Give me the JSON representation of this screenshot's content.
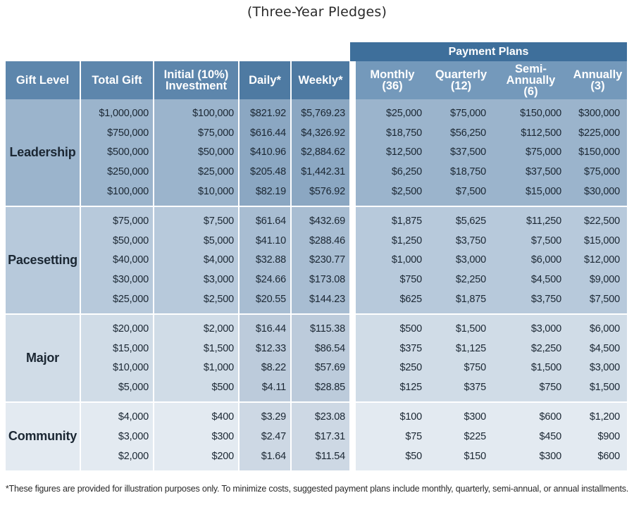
{
  "subtitle": "(Three-Year Pledges)",
  "payment_plans_label": "Payment Plans",
  "headers": {
    "gift_level": "Gift Level",
    "total_gift": "Total Gift",
    "initial_1": "Initial (10%)",
    "initial_2": "Investment",
    "daily": "Daily*",
    "weekly": "Weekly*",
    "monthly_1": "Monthly",
    "monthly_2": "(36)",
    "quarterly_1": "Quarterly",
    "quarterly_2": "(12)",
    "semi_1": "Semi-Annually",
    "semi_2": "(6)",
    "annual_1": "Annually",
    "annual_2": "(3)"
  },
  "groups": [
    {
      "level": "Leadership",
      "rows": [
        {
          "total": "$1,000,000",
          "initial": "$100,000",
          "daily": "$821.92",
          "weekly": "$5,769.23",
          "monthly": "$25,000",
          "quarterly": "$75,000",
          "semi": "$150,000",
          "annual": "$300,000"
        },
        {
          "total": "$750,000",
          "initial": "$75,000",
          "daily": "$616.44",
          "weekly": "$4,326.92",
          "monthly": "$18,750",
          "quarterly": "$56,250",
          "semi": "$112,500",
          "annual": "$225,000"
        },
        {
          "total": "$500,000",
          "initial": "$50,000",
          "daily": "$410.96",
          "weekly": "$2,884.62",
          "monthly": "$12,500",
          "quarterly": "$37,500",
          "semi": "$75,000",
          "annual": "$150,000"
        },
        {
          "total": "$250,000",
          "initial": "$25,000",
          "daily": "$205.48",
          "weekly": "$1,442.31",
          "monthly": "$6,250",
          "quarterly": "$18,750",
          "semi": "$37,500",
          "annual": "$75,000"
        },
        {
          "total": "$100,000",
          "initial": "$10,000",
          "daily": "$82.19",
          "weekly": "$576.92",
          "monthly": "$2,500",
          "quarterly": "$7,500",
          "semi": "$15,000",
          "annual": "$30,000"
        }
      ]
    },
    {
      "level": "Pacesetting",
      "rows": [
        {
          "total": "$75,000",
          "initial": "$7,500",
          "daily": "$61.64",
          "weekly": "$432.69",
          "monthly": "$1,875",
          "quarterly": "$5,625",
          "semi": "$11,250",
          "annual": "$22,500"
        },
        {
          "total": "$50,000",
          "initial": "$5,000",
          "daily": "$41.10",
          "weekly": "$288.46",
          "monthly": "$1,250",
          "quarterly": "$3,750",
          "semi": "$7,500",
          "annual": "$15,000"
        },
        {
          "total": "$40,000",
          "initial": "$4,000",
          "daily": "$32.88",
          "weekly": "$230.77",
          "monthly": "$1,000",
          "quarterly": "$3,000",
          "semi": "$6,000",
          "annual": "$12,000"
        },
        {
          "total": "$30,000",
          "initial": "$3,000",
          "daily": "$24.66",
          "weekly": "$173.08",
          "monthly": "$750",
          "quarterly": "$2,250",
          "semi": "$4,500",
          "annual": "$9,000"
        },
        {
          "total": "$25,000",
          "initial": "$2,500",
          "daily": "$20.55",
          "weekly": "$144.23",
          "monthly": "$625",
          "quarterly": "$1,875",
          "semi": "$3,750",
          "annual": "$7,500"
        }
      ]
    },
    {
      "level": "Major",
      "rows": [
        {
          "total": "$20,000",
          "initial": "$2,000",
          "daily": "$16.44",
          "weekly": "$115.38",
          "monthly": "$500",
          "quarterly": "$1,500",
          "semi": "$3,000",
          "annual": "$6,000"
        },
        {
          "total": "$15,000",
          "initial": "$1,500",
          "daily": "$12.33",
          "weekly": "$86.54",
          "monthly": "$375",
          "quarterly": "$1,125",
          "semi": "$2,250",
          "annual": "$4,500"
        },
        {
          "total": "$10,000",
          "initial": "$1,000",
          "daily": "$8.22",
          "weekly": "$57.69",
          "monthly": "$250",
          "quarterly": "$750",
          "semi": "$1,500",
          "annual": "$3,000"
        },
        {
          "total": "$5,000",
          "initial": "$500",
          "daily": "$4.11",
          "weekly": "$28.85",
          "monthly": "$125",
          "quarterly": "$375",
          "semi": "$750",
          "annual": "$1,500"
        }
      ]
    },
    {
      "level": "Community",
      "rows": [
        {
          "total": "$4,000",
          "initial": "$400",
          "daily": "$3.29",
          "weekly": "$23.08",
          "monthly": "$100",
          "quarterly": "$300",
          "semi": "$600",
          "annual": "$1,200"
        },
        {
          "total": "$3,000",
          "initial": "$300",
          "daily": "$2.47",
          "weekly": "$17.31",
          "monthly": "$75",
          "quarterly": "$225",
          "semi": "$450",
          "annual": "$900"
        },
        {
          "total": "$2,000",
          "initial": "$200",
          "daily": "$1.64",
          "weekly": "$11.54",
          "monthly": "$50",
          "quarterly": "$150",
          "semi": "$300",
          "annual": "$600"
        }
      ]
    }
  ],
  "footnote": "*These figures are provided for illustration purposes only. To minimize costs, suggested payment plans include monthly, quarterly, semi-annual, or annual installments."
}
